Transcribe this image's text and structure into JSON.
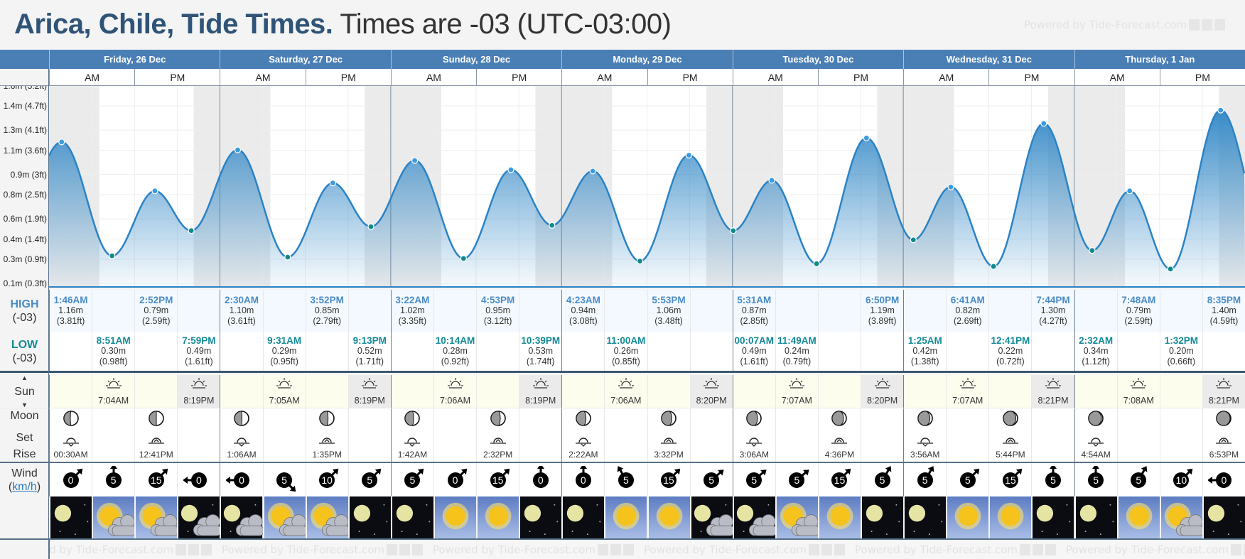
{
  "header": {
    "place": "Arica, Chile, Tide Times.",
    "timezone": "Times are -03 (UTC-03:00)",
    "powered_by": "Powered by Tide-Forecast.com"
  },
  "colors": {
    "header_bar": "#4a7fb5",
    "high": "#4a8cc7",
    "low": "#138a96",
    "tide_line": "#2b83c5",
    "night": "#ebebeb"
  },
  "days": [
    "Friday, 26 Dec",
    "Saturday, 27 Dec",
    "Sunday, 28 Dec",
    "Monday, 29 Dec",
    "Tuesday, 30 Dec",
    "Wednesday, 31 Dec",
    "Thursday, 1 Jan"
  ],
  "ampm": [
    "AM",
    "PM"
  ],
  "labels": {
    "high": "HIGH",
    "low": "LOW",
    "tz": "(-03)",
    "sun": "Sun",
    "moon": "Moon",
    "set": "Set",
    "rise": "Rise",
    "wind": "Wind",
    "wind_unit": "km/h"
  },
  "chart_data": {
    "type": "area",
    "ylabel": "Tide height",
    "yticks": [
      {
        "label": "0.1m (0.3ft)",
        "ft": 0.3
      },
      {
        "label": "0.3m (0.9ft)",
        "ft": 0.9
      },
      {
        "label": "0.4m (1.4ft)",
        "ft": 1.4
      },
      {
        "label": "0.6m (1.9ft)",
        "ft": 1.9
      },
      {
        "label": "0.8m (2.5ft)",
        "ft": 2.5
      },
      {
        "label": "0.9m (3ft)",
        "ft": 3.0
      },
      {
        "label": "1.1m (3.6ft)",
        "ft": 3.6
      },
      {
        "label": "1.3m (4.1ft)",
        "ft": 4.1
      },
      {
        "label": "1.4m (4.7ft)",
        "ft": 4.7
      },
      {
        "label": "1.6m (5.2ft)",
        "ft": 5.2
      }
    ],
    "daylight": {
      "sunrise_hours": [
        7.07,
        7.08,
        7.1,
        7.1,
        7.12,
        7.12,
        7.13
      ],
      "sunset_hours": [
        20.32,
        20.32,
        20.32,
        20.33,
        20.33,
        20.35,
        20.35
      ]
    },
    "extremes": [
      {
        "day": 0,
        "hour": 1.77,
        "m": 1.16,
        "type": "high"
      },
      {
        "day": 0,
        "hour": 8.85,
        "m": 0.3,
        "type": "low"
      },
      {
        "day": 0,
        "hour": 14.87,
        "m": 0.79,
        "type": "high"
      },
      {
        "day": 0,
        "hour": 19.98,
        "m": 0.49,
        "type": "low"
      },
      {
        "day": 1,
        "hour": 2.5,
        "m": 1.1,
        "type": "high"
      },
      {
        "day": 1,
        "hour": 9.52,
        "m": 0.29,
        "type": "low"
      },
      {
        "day": 1,
        "hour": 15.87,
        "m": 0.85,
        "type": "high"
      },
      {
        "day": 1,
        "hour": 21.22,
        "m": 0.52,
        "type": "low"
      },
      {
        "day": 2,
        "hour": 3.37,
        "m": 1.02,
        "type": "high"
      },
      {
        "day": 2,
        "hour": 10.23,
        "m": 0.28,
        "type": "low"
      },
      {
        "day": 2,
        "hour": 16.88,
        "m": 0.95,
        "type": "high"
      },
      {
        "day": 2,
        "hour": 22.65,
        "m": 0.53,
        "type": "low"
      },
      {
        "day": 3,
        "hour": 4.38,
        "m": 0.94,
        "type": "high"
      },
      {
        "day": 3,
        "hour": 11.0,
        "m": 0.26,
        "type": "low"
      },
      {
        "day": 3,
        "hour": 17.88,
        "m": 1.06,
        "type": "high"
      },
      {
        "day": 4,
        "hour": 0.12,
        "m": 0.49,
        "type": "low"
      },
      {
        "day": 4,
        "hour": 5.52,
        "m": 0.87,
        "type": "high"
      },
      {
        "day": 4,
        "hour": 11.82,
        "m": 0.24,
        "type": "low"
      },
      {
        "day": 4,
        "hour": 18.83,
        "m": 1.19,
        "type": "high"
      },
      {
        "day": 5,
        "hour": 1.42,
        "m": 0.42,
        "type": "low"
      },
      {
        "day": 5,
        "hour": 6.68,
        "m": 0.82,
        "type": "high"
      },
      {
        "day": 5,
        "hour": 12.68,
        "m": 0.22,
        "type": "low"
      },
      {
        "day": 5,
        "hour": 19.73,
        "m": 1.3,
        "type": "high"
      },
      {
        "day": 6,
        "hour": 2.53,
        "m": 0.34,
        "type": "low"
      },
      {
        "day": 6,
        "hour": 7.8,
        "m": 0.79,
        "type": "high"
      },
      {
        "day": 6,
        "hour": 13.53,
        "m": 0.2,
        "type": "low"
      },
      {
        "day": 6,
        "hour": 20.58,
        "m": 1.4,
        "type": "high"
      }
    ]
  },
  "high": [
    {
      "t": "1:46AM",
      "m": "1.16m",
      "ft": "(3.81ft)"
    },
    null,
    {
      "t": "2:52PM",
      "m": "0.79m",
      "ft": "(2.59ft)"
    },
    null,
    {
      "t": "2:30AM",
      "m": "1.10m",
      "ft": "(3.61ft)"
    },
    null,
    {
      "t": "3:52PM",
      "m": "0.85m",
      "ft": "(2.79ft)"
    },
    null,
    {
      "t": "3:22AM",
      "m": "1.02m",
      "ft": "(3.35ft)"
    },
    null,
    {
      "t": "4:53PM",
      "m": "0.95m",
      "ft": "(3.12ft)"
    },
    null,
    {
      "t": "4:23AM",
      "m": "0.94m",
      "ft": "(3.08ft)"
    },
    null,
    {
      "t": "5:53PM",
      "m": "1.06m",
      "ft": "(3.48ft)"
    },
    null,
    {
      "t": "5:31AM",
      "m": "0.87m",
      "ft": "(2.85ft)"
    },
    null,
    null,
    {
      "t": "6:50PM",
      "m": "1.19m",
      "ft": "(3.89ft)"
    },
    null,
    {
      "t": "6:41AM",
      "m": "0.82m",
      "ft": "(2.69ft)"
    },
    null,
    {
      "t": "7:44PM",
      "m": "1.30m",
      "ft": "(4.27ft)"
    },
    null,
    {
      "t": "7:48AM",
      "m": "0.79m",
      "ft": "(2.59ft)"
    },
    null,
    {
      "t": "8:35PM",
      "m": "1.40m",
      "ft": "(4.59ft)"
    }
  ],
  "low": [
    null,
    {
      "t": "8:51AM",
      "m": "0.30m",
      "ft": "(0.98ft)"
    },
    null,
    {
      "t": "7:59PM",
      "m": "0.49m",
      "ft": "(1.61ft)"
    },
    null,
    {
      "t": "9:31AM",
      "m": "0.29m",
      "ft": "(0.95ft)"
    },
    null,
    {
      "t": "9:13PM",
      "m": "0.52m",
      "ft": "(1.71ft)"
    },
    null,
    {
      "t": "10:14AM",
      "m": "0.28m",
      "ft": "(0.92ft)"
    },
    null,
    {
      "t": "10:39PM",
      "m": "0.53m",
      "ft": "(1.74ft)"
    },
    null,
    {
      "t": "11:00AM",
      "m": "0.26m",
      "ft": "(0.85ft)"
    },
    null,
    null,
    {
      "t": "00:07AM",
      "m": "0.49m",
      "ft": "(1.61ft)"
    },
    {
      "t": "11:49AM",
      "m": "0.24m",
      "ft": "(0.79ft)"
    },
    null,
    null,
    {
      "t": "1:25AM",
      "m": "0.42m",
      "ft": "(1.38ft)"
    },
    null,
    {
      "t": "12:41PM",
      "m": "0.22m",
      "ft": "(0.72ft)"
    },
    null,
    {
      "t": "2:32AM",
      "m": "0.34m",
      "ft": "(1.12ft)"
    },
    null,
    {
      "t": "1:32PM",
      "m": "0.20m",
      "ft": "(0.66ft)"
    },
    null
  ],
  "sun": [
    null,
    {
      "t": "7:04AM",
      "type": "rise"
    },
    null,
    {
      "t": "8:19PM",
      "type": "set"
    },
    null,
    {
      "t": "7:05AM",
      "type": "rise"
    },
    null,
    {
      "t": "8:19PM",
      "type": "set"
    },
    null,
    {
      "t": "7:06AM",
      "type": "rise"
    },
    null,
    {
      "t": "8:19PM",
      "type": "set"
    },
    null,
    {
      "t": "7:06AM",
      "type": "rise"
    },
    null,
    {
      "t": "8:20PM",
      "type": "set"
    },
    null,
    {
      "t": "7:07AM",
      "type": "rise"
    },
    null,
    {
      "t": "8:20PM",
      "type": "set"
    },
    null,
    {
      "t": "7:07AM",
      "type": "rise"
    },
    null,
    {
      "t": "8:21PM",
      "type": "set"
    },
    null,
    {
      "t": "7:08AM",
      "type": "rise"
    },
    null,
    {
      "t": "8:21PM",
      "type": "set"
    }
  ],
  "moon": [
    {
      "t": "00:30AM",
      "type": "set",
      "lit": 0.45
    },
    null,
    {
      "t": "12:41PM",
      "type": "rise",
      "lit": 0.5
    },
    null,
    {
      "t": "1:06AM",
      "type": "set",
      "lit": 0.52
    },
    null,
    {
      "t": "1:35PM",
      "type": "rise",
      "lit": 0.58
    },
    null,
    {
      "t": "1:42AM",
      "type": "set",
      "lit": 0.6
    },
    null,
    {
      "t": "2:32PM",
      "type": "rise",
      "lit": 0.65
    },
    null,
    {
      "t": "2:22AM",
      "type": "set",
      "lit": 0.68
    },
    null,
    {
      "t": "3:32PM",
      "type": "rise",
      "lit": 0.72
    },
    null,
    {
      "t": "3:06AM",
      "type": "set",
      "lit": 0.75
    },
    null,
    {
      "t": "4:36PM",
      "type": "rise",
      "lit": 0.8
    },
    null,
    {
      "t": "3:56AM",
      "type": "set",
      "lit": 0.83
    },
    null,
    {
      "t": "5:44PM",
      "type": "rise",
      "lit": 0.88
    },
    null,
    {
      "t": "4:54AM",
      "type": "set",
      "lit": 0.9
    },
    null,
    null,
    {
      "t": "6:53PM",
      "type": "rise",
      "lit": 0.95
    }
  ],
  "wind": [
    {
      "v": "0",
      "dir": 45
    },
    {
      "v": "5",
      "dir": 0
    },
    {
      "v": "15",
      "dir": 45
    },
    {
      "v": "0",
      "dir": 270
    },
    {
      "v": "0",
      "dir": 270
    },
    {
      "v": "5",
      "dir": 135
    },
    {
      "v": "10",
      "dir": 45
    },
    {
      "v": "5",
      "dir": 45
    },
    {
      "v": "5",
      "dir": 45
    },
    {
      "v": "0",
      "dir": 45
    },
    {
      "v": "15",
      "dir": 45
    },
    {
      "v": "0",
      "dir": 0
    },
    {
      "v": "0",
      "dir": 0
    },
    {
      "v": "5",
      "dir": 330
    },
    {
      "v": "15",
      "dir": 45
    },
    {
      "v": "5",
      "dir": 50
    },
    {
      "v": "5",
      "dir": 50
    },
    {
      "v": "5",
      "dir": 50
    },
    {
      "v": "15",
      "dir": 45
    },
    {
      "v": "5",
      "dir": 30
    },
    {
      "v": "5",
      "dir": 30
    },
    {
      "v": "5",
      "dir": 45
    },
    {
      "v": "15",
      "dir": 45
    },
    {
      "v": "5",
      "dir": 0
    },
    {
      "v": "5",
      "dir": 0
    },
    {
      "v": "5",
      "dir": 30
    },
    {
      "v": "10",
      "dir": 45
    },
    {
      "v": "0",
      "dir": 270
    }
  ],
  "weather": [
    "moon-clear",
    "sun-cloud",
    "sun-cloud",
    "moon-cloud",
    "moon-cloud",
    "sun-cloud",
    "sun-cloud",
    "moon-clear",
    "moon-clear",
    "sun",
    "sun",
    "moon-clear",
    "moon-clear",
    "sun",
    "sun",
    "moon-cloud",
    "moon-cloud",
    "sun-cloud",
    "sun",
    "moon-clear",
    "moon-clear",
    "sun",
    "sun",
    "moon-clear",
    "moon-clear",
    "sun",
    "sun-cloud",
    "moon-clear"
  ]
}
